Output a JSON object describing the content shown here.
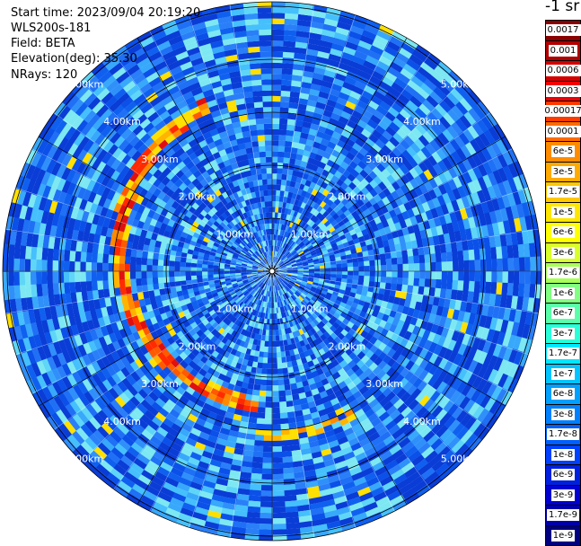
{
  "info": {
    "start_time": "Start time: 2023/09/04 20:19:20",
    "instrument": "WLS200s-181",
    "field": "Field: BETA",
    "elevation": "Elevation(deg): 35.30",
    "nrays": "NRays: 120"
  },
  "colorbar": {
    "unit": "-1 sr",
    "labels": [
      "0.0017",
      "0.001",
      "0.0006",
      "0.0003",
      "0.00017",
      "0.0001",
      "6e-5",
      "3e-5",
      "1.7e-5",
      "1e-5",
      "6e-6",
      "3e-6",
      "1.7e-6",
      "1e-6",
      "6e-7",
      "3e-7",
      "1.7e-7",
      "1e-7",
      "6e-8",
      "3e-8",
      "1.7e-8",
      "1e-8",
      "6e-9",
      "3e-9",
      "1.7e-9",
      "1e-9"
    ],
    "colors": [
      "#8b0000",
      "#b00000",
      "#d40000",
      "#f00000",
      "#ff3a00",
      "#ff6a00",
      "#ff8c00",
      "#ffaa00",
      "#ffc800",
      "#ffe600",
      "#ffff00",
      "#d8ff28",
      "#a8ff58",
      "#80ff80",
      "#58ffa8",
      "#28ffd8",
      "#00e8ff",
      "#00c4ff",
      "#00a0ff",
      "#0080ff",
      "#0060ff",
      "#0040ff",
      "#0020e0",
      "#0000d0",
      "#0000a8",
      "#000080"
    ]
  },
  "range_labels": [
    "1.00km",
    "2.00km",
    "3.00km",
    "4.00km",
    "5.00km"
  ]
}
